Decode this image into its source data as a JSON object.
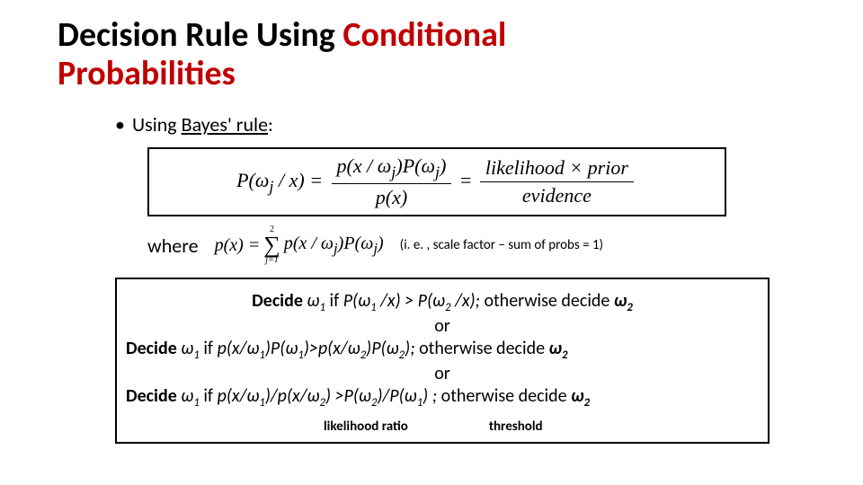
{
  "title": {
    "part1": "Decision Rule Using ",
    "part2": "Conditional",
    "part3": "Probabilities"
  },
  "bullet": {
    "prefix": "Using ",
    "link": "Bayes' rule",
    "suffix": ":"
  },
  "bayes": {
    "lhs": "P(ω",
    "lhs_sub": "j",
    "lhs_tail": " / x) = ",
    "num_a": "p(x / ω",
    "num_sub": "j",
    "num_b": ")P(ω",
    "num_sub2": "j",
    "num_c": ")",
    "den": "p(x)",
    "eq": " = ",
    "rhs_num": "likelihood × prior",
    "rhs_den": "evidence"
  },
  "where": {
    "label": "where",
    "px": "p(x) = ",
    "sum_top": "2",
    "sum_bot": "j=1",
    "body_a": "p(x / ω",
    "body_sub": "j",
    "body_b": ")P(ω",
    "body_sub2": "j",
    "body_c": ")",
    "note": "(i. e. , scale factor – sum of probs = 1)"
  },
  "decide": {
    "l1_a": "Decide ",
    "w1": "ω",
    "s1": "1",
    "l1_b": " if ",
    "l1_c": "P(ω",
    "l1_d": " /x) > P(ω",
    "s2": "2",
    "l1_e": " /x);",
    "l1_f": " otherwise decide  ",
    "or": "or",
    "l2_b": " if  ",
    "l2_c": "p(x/ω",
    "l2_d": ")P(ω",
    "l2_e": ")>p(x/ω",
    "l2_f": ");",
    "l2_g": " otherwise decide  ",
    "l3_b": " if  ",
    "l3_c": "p(x/ω",
    "l3_d": ")/p(x/ω",
    "l3_e": ") >P(ω",
    "l3_f": ")/P(ω",
    "l3_g": ") ;",
    "l3_h": " otherwise decide  "
  },
  "labels": {
    "likelihood": "likelihood ratio",
    "threshold": "threshold"
  },
  "colors": {
    "accent": "#c00000",
    "text": "#000000",
    "bg": "#ffffff"
  }
}
